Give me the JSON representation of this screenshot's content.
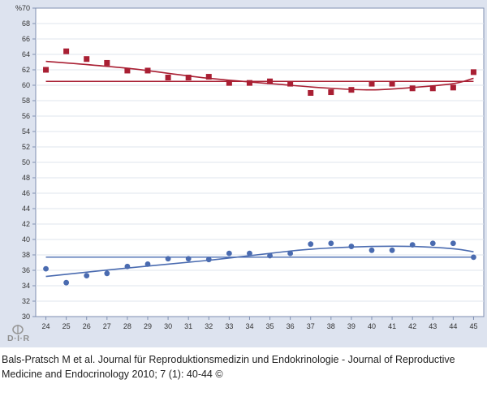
{
  "chart_data": {
    "type": "scatter",
    "title": "",
    "xlabel": "",
    "ylabel": "%",
    "x_ticks": [
      24,
      25,
      26,
      27,
      28,
      29,
      30,
      31,
      32,
      33,
      34,
      35,
      36,
      37,
      38,
      39,
      40,
      41,
      42,
      43,
      44,
      45
    ],
    "y_ticks": [
      30,
      32,
      34,
      36,
      38,
      40,
      42,
      44,
      46,
      48,
      50,
      52,
      54,
      56,
      58,
      60,
      62,
      64,
      66,
      68,
      70
    ],
    "xlim": [
      23.5,
      45.5
    ],
    "ylim": [
      30,
      70
    ],
    "grid": true,
    "series": [
      {
        "color": "#a91f33",
        "marker": "square",
        "x": [
          24,
          25,
          26,
          27,
          28,
          29,
          30,
          31,
          32,
          33,
          34,
          35,
          36,
          37,
          38,
          39,
          40,
          41,
          42,
          43,
          44,
          45
        ],
        "y": [
          62.0,
          64.4,
          63.4,
          62.9,
          61.9,
          61.9,
          61.0,
          61.0,
          61.1,
          60.3,
          60.3,
          60.5,
          60.2,
          59.0,
          59.1,
          59.4,
          60.2,
          60.2,
          59.6,
          59.6,
          59.7,
          61.7
        ]
      },
      {
        "color": "#4a6bb0",
        "marker": "circle",
        "x": [
          24,
          25,
          26,
          27,
          28,
          29,
          30,
          31,
          32,
          33,
          34,
          35,
          36,
          37,
          38,
          39,
          40,
          41,
          42,
          43,
          44,
          45
        ],
        "y": [
          36.2,
          34.4,
          35.3,
          35.6,
          36.5,
          36.8,
          37.5,
          37.5,
          37.4,
          38.2,
          38.2,
          37.9,
          38.2,
          39.4,
          39.5,
          39.1,
          38.6,
          38.6,
          39.3,
          39.5,
          39.5,
          37.7
        ]
      }
    ],
    "mean_lines": [
      {
        "color": "#a91f33",
        "y": 60.5
      },
      {
        "color": "#4a6bb0",
        "y": 37.7
      }
    ],
    "trend_lines": [
      {
        "color": "#a91f33",
        "x": [
          24,
          28,
          32,
          36,
          38,
          40,
          42,
          44,
          45
        ],
        "y": [
          63.1,
          62.2,
          60.9,
          60.0,
          59.6,
          59.4,
          59.7,
          60.2,
          60.9
        ]
      },
      {
        "color": "#4a6bb0",
        "x": [
          24,
          28,
          32,
          36,
          38,
          40,
          42,
          44,
          45
        ],
        "y": [
          35.2,
          36.3,
          37.3,
          38.5,
          38.9,
          39.1,
          39.1,
          38.8,
          38.4
        ]
      }
    ]
  },
  "caption": "Bals-Pratsch M et al. Journal für Reproduktionsmedizin und Endokrinologie - Journal of Reproductive Medicine and Endocrinology 2010; 7 (1): 40-44 ©",
  "logo": {
    "text": "D·I·R"
  },
  "colors": {
    "figure_bg": "#dde3ef",
    "plot_bg": "#ffffff",
    "grid": "#dfe4ee",
    "axis": "#7f8fb0"
  }
}
